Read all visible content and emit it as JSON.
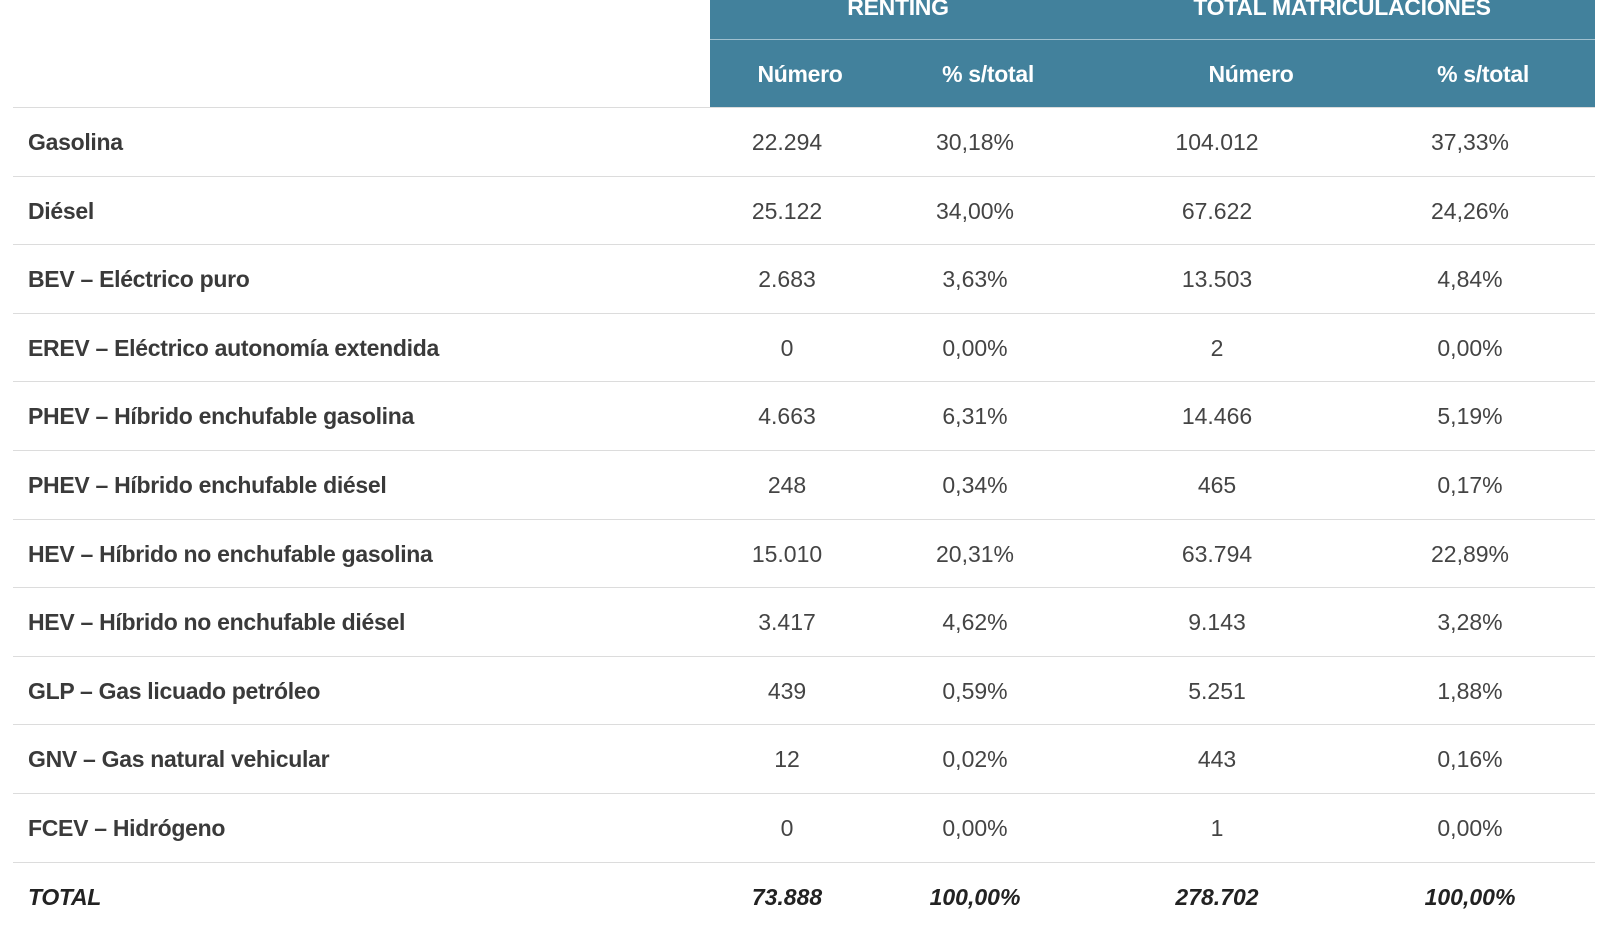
{
  "header": {
    "groups": [
      "RENTING",
      "TOTAL MATRICULACIONES"
    ],
    "subheaders": [
      "Número",
      "% s/total",
      "Número",
      "% s/total"
    ]
  },
  "rows": [
    {
      "label": "Gasolina",
      "values": [
        "22.294",
        "30,18%",
        "104.012",
        "37,33%"
      ]
    },
    {
      "label": "Diésel",
      "values": [
        "25.122",
        "34,00%",
        "67.622",
        "24,26%"
      ]
    },
    {
      "label": "BEV – Eléctrico puro",
      "values": [
        "2.683",
        "3,63%",
        "13.503",
        "4,84%"
      ]
    },
    {
      "label": "EREV – Eléctrico autonomía extendida",
      "values": [
        "0",
        "0,00%",
        "2",
        "0,00%"
      ]
    },
    {
      "label": "PHEV – Híbrido enchufable gasolina",
      "values": [
        "4.663",
        "6,31%",
        "14.466",
        "5,19%"
      ]
    },
    {
      "label": "PHEV – Híbrido enchufable diésel",
      "values": [
        "248",
        "0,34%",
        "465",
        "0,17%"
      ]
    },
    {
      "label": "HEV – Híbrido no enchufable gasolina",
      "values": [
        "15.010",
        "20,31%",
        "63.794",
        "22,89%"
      ]
    },
    {
      "label": "HEV – Híbrido no enchufable diésel",
      "values": [
        "3.417",
        "4,62%",
        "9.143",
        "3,28%"
      ]
    },
    {
      "label": "GLP – Gas licuado petróleo",
      "values": [
        "439",
        "0,59%",
        "5.251",
        "1,88%"
      ]
    },
    {
      "label": "GNV – Gas natural vehicular",
      "values": [
        "12",
        "0,02%",
        "443",
        "0,16%"
      ]
    },
    {
      "label": "FCEV – Hidrógeno",
      "values": [
        "0",
        "0,00%",
        "1",
        "0,00%"
      ]
    }
  ],
  "total": {
    "label": "TOTAL",
    "values": [
      "73.888",
      "100,00%",
      "278.702",
      "100,00%"
    ]
  },
  "colors": {
    "header_bg": "#42819c",
    "header_text": "#ffffff",
    "row_divider": "#dcdcdc"
  }
}
